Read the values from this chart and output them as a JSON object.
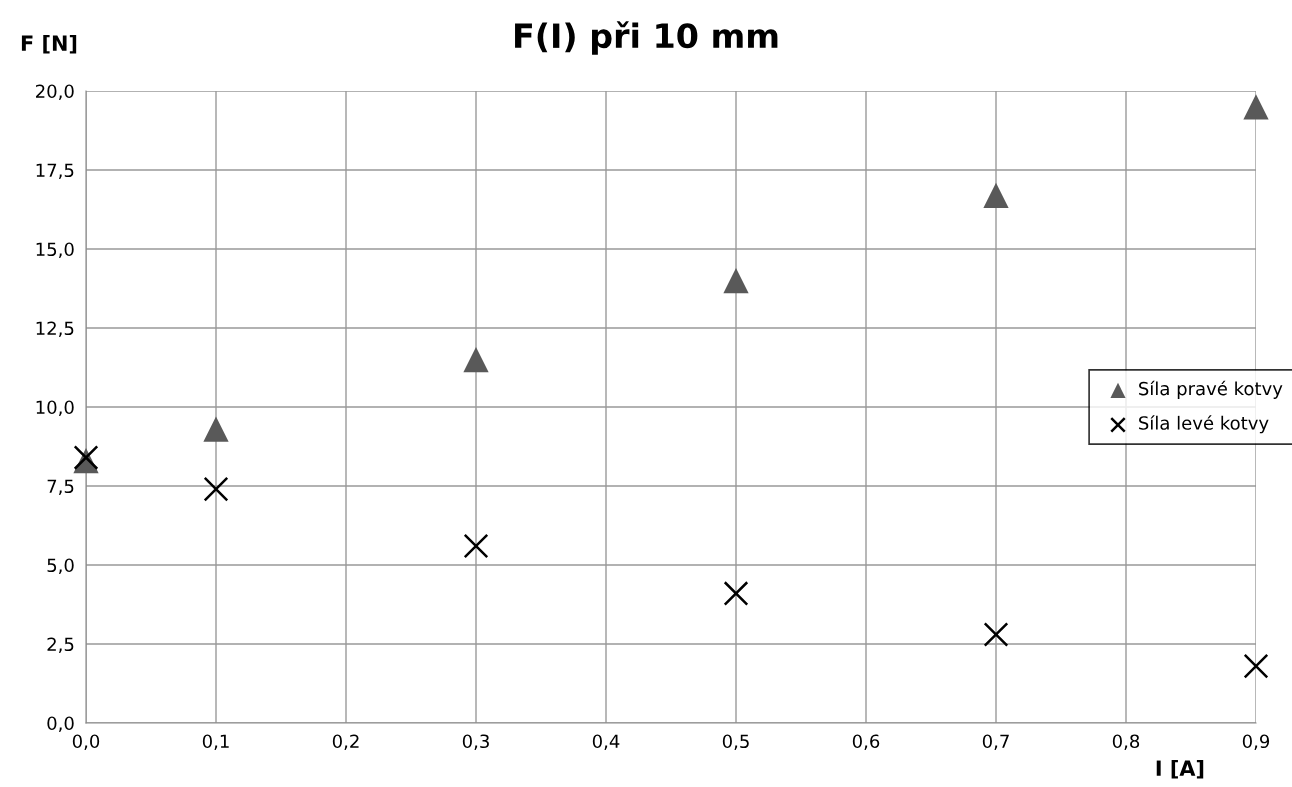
{
  "chart_data": {
    "type": "scatter",
    "title": "F(I) při 10 mm",
    "xlabel": "I [A]",
    "ylabel": "F [N]",
    "x": [
      0.0,
      0.1,
      0.3,
      0.5,
      0.7,
      0.9
    ],
    "series": [
      {
        "name": "Síla pravé kotvy",
        "color": "#595959",
        "marker": "triangle",
        "values": [
          8.3,
          9.3,
          11.5,
          14.0,
          16.7,
          19.5
        ]
      },
      {
        "name": "Síla levé kotvy",
        "color": "#000000",
        "marker": "cross",
        "values": [
          8.4,
          7.4,
          5.6,
          4.1,
          2.8,
          1.8
        ]
      }
    ],
    "xlim": [
      0,
      0.9
    ],
    "ylim": [
      0,
      20
    ],
    "xticks": [
      {
        "value": 0,
        "label": "0,0"
      },
      {
        "value": 0.1,
        "label": "0,1"
      },
      {
        "value": 0.2,
        "label": "0,2"
      },
      {
        "value": 0.3,
        "label": "0,3"
      },
      {
        "value": 0.4,
        "label": "0,4"
      },
      {
        "value": 0.5,
        "label": "0,5"
      },
      {
        "value": 0.6,
        "label": "0,6"
      },
      {
        "value": 0.7,
        "label": "0,7"
      },
      {
        "value": 0.8,
        "label": "0,8"
      },
      {
        "value": 0.9,
        "label": "0,9"
      }
    ],
    "yticks": [
      {
        "value": 0,
        "label": "0,0"
      },
      {
        "value": 2.5,
        "label": "2,5"
      },
      {
        "value": 5,
        "label": "5,0"
      },
      {
        "value": 7.5,
        "label": "7,5"
      },
      {
        "value": 10,
        "label": "10,0"
      },
      {
        "value": 12.5,
        "label": "12,5"
      },
      {
        "value": 15,
        "label": "15,0"
      },
      {
        "value": 17.5,
        "label": "17,5"
      },
      {
        "value": 20,
        "label": "20,0"
      }
    ],
    "grid": true,
    "legend": "right"
  }
}
